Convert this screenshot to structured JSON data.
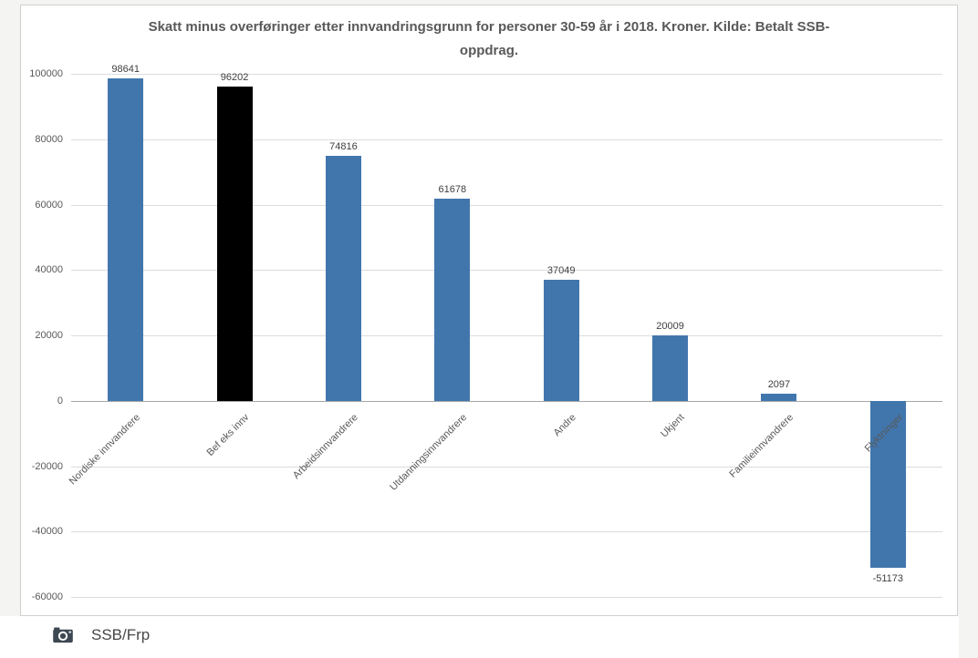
{
  "chart_data": {
    "type": "bar",
    "title": "Skatt minus overføringer etter innvandringsgrunn for personer 30-59 år i 2018. Kroner. Kilde: Betalt SSB-oppdrag.",
    "categories": [
      "Nordiske innvandrere",
      "Bef eks innv",
      "Arbeidsinnvandrere",
      "Utdanningsinnvandrere",
      "Andre",
      "Ukjent",
      "Familieinnvandrere",
      "Flyktninger"
    ],
    "values": [
      98641,
      96202,
      74816,
      61678,
      37049,
      20009,
      2097,
      -51173
    ],
    "bar_colors": [
      "#4176ad",
      "#000000",
      "#4176ad",
      "#4176ad",
      "#4176ad",
      "#4176ad",
      "#4176ad",
      "#4176ad"
    ],
    "value_labels": [
      "98641",
      "96202",
      "74816",
      "61678",
      "37049",
      "20009",
      "2097",
      "-51173"
    ],
    "ylim": [
      -60000,
      100000
    ],
    "yticks": [
      100000,
      80000,
      60000,
      40000,
      20000,
      0,
      -20000,
      -40000,
      -60000
    ],
    "grid": true,
    "legend": "none",
    "xlabel": "",
    "ylabel": ""
  },
  "colors": {
    "bar_blue": "#4176ad",
    "bar_highlight": "#000000",
    "gridline": "#dcdcdc",
    "zero_axis": "#a6a6a6",
    "title_text": "#595959",
    "page_background": "#f4f4f2",
    "card_background": "#ffffff"
  },
  "footer": {
    "caption": "SSB/Frp"
  }
}
